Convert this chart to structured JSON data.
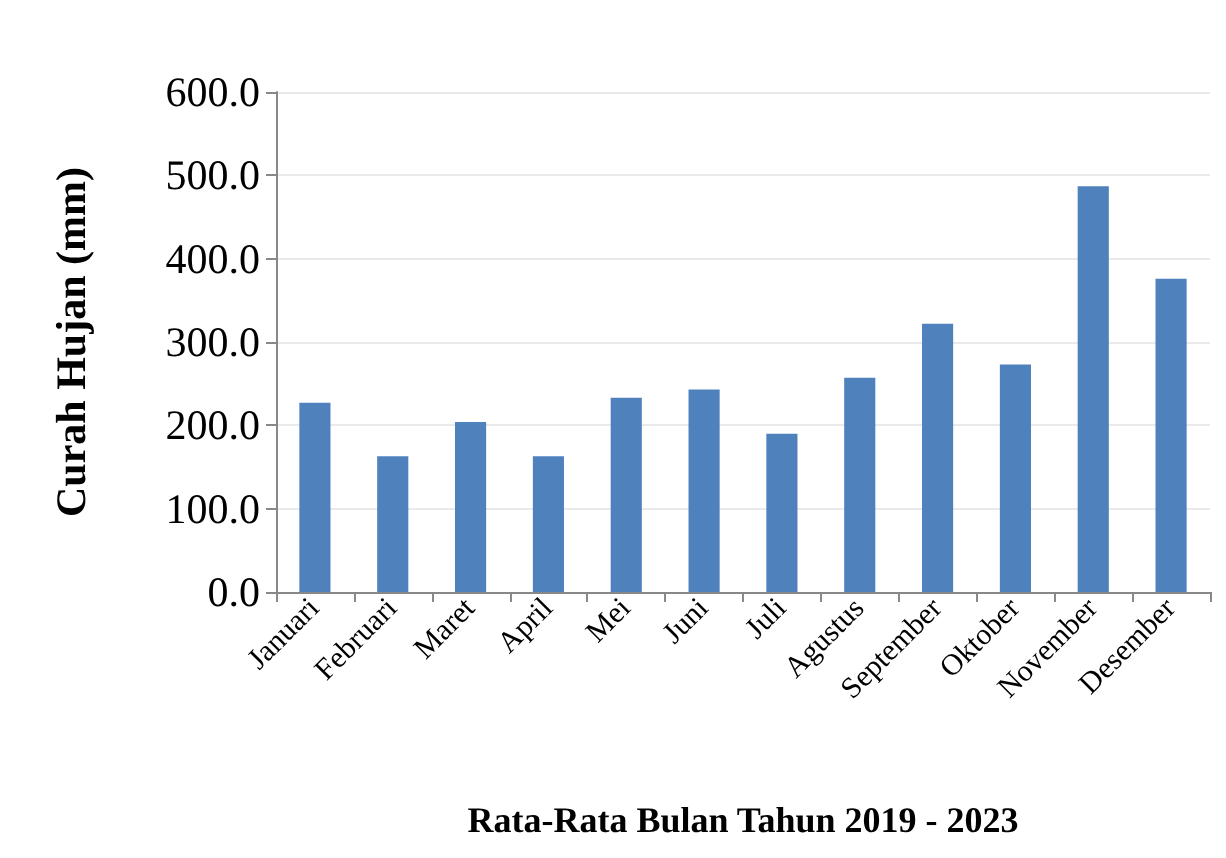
{
  "chart_data": {
    "type": "bar",
    "xlabel": "Rata-Rata Bulan Tahun 2019 - 2023",
    "ylabel": "Curah Hujan (mm)",
    "categories": [
      "Januari",
      "Februari",
      "Maret",
      "April",
      "Mei",
      "Juni",
      "Juli",
      "Agustus",
      "September",
      "Oktober",
      "November",
      "Desember"
    ],
    "values": [
      227,
      163,
      204,
      163,
      233,
      243,
      190,
      257,
      322,
      273,
      487,
      376
    ],
    "color": "#4f81bd",
    "ylim": [
      0,
      600
    ],
    "yticks": [
      {
        "value": 0,
        "label": "0.0"
      },
      {
        "value": 100,
        "label": "100.0"
      },
      {
        "value": 200,
        "label": "200.0"
      },
      {
        "value": 300,
        "label": "300.0"
      },
      {
        "value": 400,
        "label": "400.0"
      },
      {
        "value": 500,
        "label": "500.0"
      },
      {
        "value": 600,
        "label": "600.0"
      }
    ],
    "grid": "y"
  }
}
